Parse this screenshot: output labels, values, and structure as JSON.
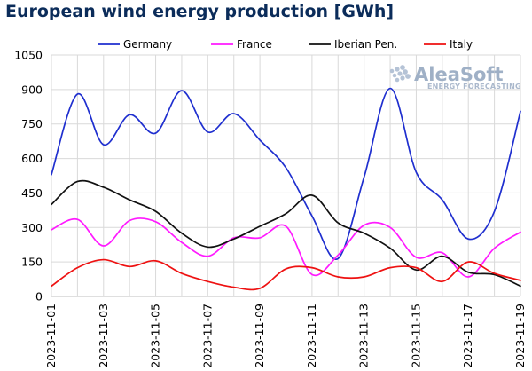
{
  "chart_data": {
    "type": "line",
    "title": "European wind energy production [GWh]",
    "xlabel": "",
    "ylabel": "",
    "ylim": [
      0,
      1050
    ],
    "yticks": [
      0,
      150,
      300,
      450,
      600,
      750,
      900,
      1050
    ],
    "x": [
      "2023-11-01",
      "2023-11-02",
      "2023-11-03",
      "2023-11-04",
      "2023-11-05",
      "2023-11-06",
      "2023-11-07",
      "2023-11-08",
      "2023-11-09",
      "2023-11-10",
      "2023-11-11",
      "2023-11-12",
      "2023-11-13",
      "2023-11-14",
      "2023-11-15",
      "2023-11-16",
      "2023-11-17",
      "2023-11-18",
      "2023-11-19"
    ],
    "xtick_labels": [
      "2023-11-01",
      "2023-11-03",
      "2023-11-05",
      "2023-11-07",
      "2023-11-09",
      "2023-11-11",
      "2023-11-13",
      "2023-11-15",
      "2023-11-17",
      "2023-11-19"
    ],
    "grid": true,
    "legend_position": "top",
    "series": [
      {
        "name": "Germany",
        "color": "#1f2fcf",
        "values": [
          530,
          880,
          660,
          790,
          710,
          895,
          715,
          795,
          680,
          560,
          350,
          165,
          520,
          905,
          540,
          420,
          250,
          370,
          805
        ]
      },
      {
        "name": "France",
        "color": "#ff1aff",
        "values": [
          290,
          335,
          220,
          330,
          325,
          235,
          175,
          255,
          255,
          305,
          95,
          180,
          310,
          300,
          170,
          190,
          85,
          210,
          280
        ]
      },
      {
        "name": "Iberian Pen.",
        "color": "#111111",
        "values": [
          400,
          500,
          475,
          420,
          370,
          275,
          215,
          250,
          305,
          360,
          440,
          320,
          275,
          210,
          115,
          175,
          105,
          95,
          45
        ]
      },
      {
        "name": "Italy",
        "color": "#ee1111",
        "values": [
          45,
          125,
          160,
          130,
          155,
          100,
          65,
          40,
          35,
          120,
          125,
          85,
          85,
          125,
          125,
          65,
          150,
          100,
          70
        ]
      }
    ]
  },
  "logo": {
    "name": "AleaSoft",
    "tagline": "ENERGY FORECASTING"
  }
}
